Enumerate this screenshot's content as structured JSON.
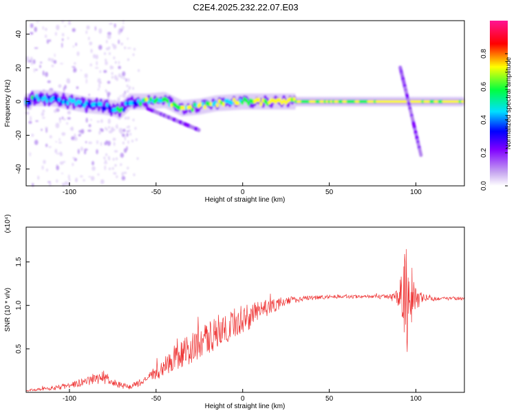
{
  "title": "C2E4.2025.232.22.07.E03",
  "chart_data": [
    {
      "type": "heatmap",
      "xlabel": "Height of straight line (km)",
      "ylabel": "Frequency (Hz)",
      "xlim": [
        -125,
        128
      ],
      "ylim": [
        -50,
        48
      ],
      "xticks": [
        -100,
        -50,
        0,
        50,
        100
      ],
      "yticks": [
        -40,
        -20,
        0,
        20,
        40
      ],
      "grid": false,
      "ridge": [
        {
          "x": -122,
          "y": 2
        },
        {
          "x": -110,
          "y": 2
        },
        {
          "x": -100,
          "y": 0
        },
        {
          "x": -90,
          "y": -2
        },
        {
          "x": -80,
          "y": -3
        },
        {
          "x": -70,
          "y": -5
        },
        {
          "x": -65,
          "y": 0
        },
        {
          "x": -55,
          "y": 0
        },
        {
          "x": -45,
          "y": 1
        },
        {
          "x": -35,
          "y": -4
        },
        {
          "x": -25,
          "y": -3
        },
        {
          "x": -15,
          "y": -1
        },
        {
          "x": 0,
          "y": 0
        },
        {
          "x": 10,
          "y": 0
        },
        {
          "x": 25,
          "y": 0
        },
        {
          "x": 50,
          "y": 0
        },
        {
          "x": 80,
          "y": 0
        },
        {
          "x": 100,
          "y": 0
        },
        {
          "x": 128,
          "y": 0
        }
      ],
      "branches": [
        {
          "from": {
            "x": 91,
            "y": 20
          },
          "to": {
            "x": 95,
            "y": 3
          }
        },
        {
          "from": {
            "x": 95,
            "y": 3
          },
          "to": {
            "x": 103,
            "y": -32
          }
        },
        {
          "from": {
            "x": -55,
            "y": -4
          },
          "to": {
            "x": -25,
            "y": -17
          }
        }
      ],
      "colorbar": {
        "label": "Normalized spectral amplitude",
        "range": [
          0.0,
          1.0
        ],
        "ticks": [
          "0.0",
          "0.2",
          "0.4",
          "0.6",
          "0.8"
        ],
        "colors": [
          "#ffffff",
          "#c8a8f0",
          "#8000ff",
          "#0000ff",
          "#00e0ff",
          "#00ff40",
          "#ffff00",
          "#ff0000",
          "#ff1493"
        ]
      }
    },
    {
      "type": "line",
      "xlabel": "Height of straight line (km)",
      "ylabel": "SNR (10 * v/v)",
      "multiplier": "(x10⁴)",
      "xlim": [
        -125,
        128
      ],
      "ylim": [
        0,
        1.9
      ],
      "xticks": [
        -100,
        -50,
        0,
        50,
        100
      ],
      "yticks": [
        "0.5",
        "1.0",
        "1.5"
      ],
      "grid": false,
      "color": "#ee3333",
      "series": [
        {
          "x": [
            -125,
            -115,
            -105,
            -95,
            -85,
            -80,
            -75,
            -65,
            -55,
            -45,
            -35,
            -25,
            -15,
            -5,
            5,
            15,
            25,
            35,
            50,
            65,
            75,
            85,
            90,
            93,
            95,
            97,
            100,
            105,
            115,
            128
          ],
          "y": [
            0.02,
            0.04,
            0.06,
            0.1,
            0.15,
            0.18,
            0.1,
            0.06,
            0.15,
            0.3,
            0.45,
            0.55,
            0.7,
            0.8,
            0.88,
            0.98,
            1.05,
            1.08,
            1.1,
            1.1,
            1.1,
            1.1,
            1.08,
            1.15,
            1.15,
            1.1,
            1.1,
            1.08,
            1.08,
            1.08
          ],
          "spread": [
            0.01,
            0.02,
            0.03,
            0.04,
            0.06,
            0.08,
            0.04,
            0.03,
            0.05,
            0.12,
            0.16,
            0.18,
            0.2,
            0.18,
            0.15,
            0.1,
            0.05,
            0.03,
            0.02,
            0.02,
            0.02,
            0.03,
            0.1,
            0.45,
            0.7,
            0.4,
            0.15,
            0.04,
            0.02,
            0.02
          ]
        }
      ]
    }
  ]
}
